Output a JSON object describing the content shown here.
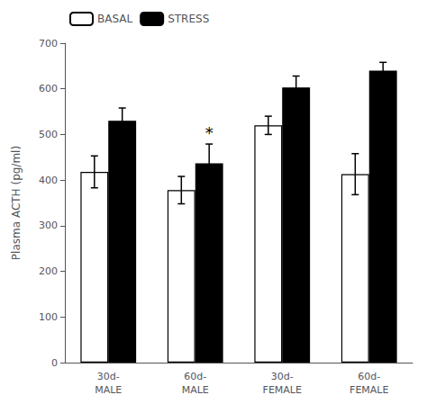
{
  "chart_data": {
    "type": "bar",
    "categories": [
      "30d-\nMALE",
      "60d-\nMALE",
      "30d-\nFEMALE",
      "60d-\nFEMALE"
    ],
    "series": [
      {
        "name": "BASAL",
        "color": "#ffffff",
        "values": [
          418,
          378,
          520,
          413
        ],
        "errors": [
          35,
          30,
          20,
          45
        ]
      },
      {
        "name": "STRESS",
        "color": "#000000",
        "values": [
          530,
          437,
          603,
          640
        ],
        "errors": [
          28,
          42,
          25,
          18
        ]
      }
    ],
    "ylabel": "Plasma ACTH (pg/ml)",
    "ylim": [
      0,
      700
    ],
    "yticks": [
      0,
      100,
      200,
      300,
      400,
      500,
      600,
      700
    ],
    "annotations": [
      {
        "text": "*",
        "series": "STRESS",
        "category": "60d-\nMALE"
      }
    ],
    "legend": "upper left",
    "grid": false
  }
}
